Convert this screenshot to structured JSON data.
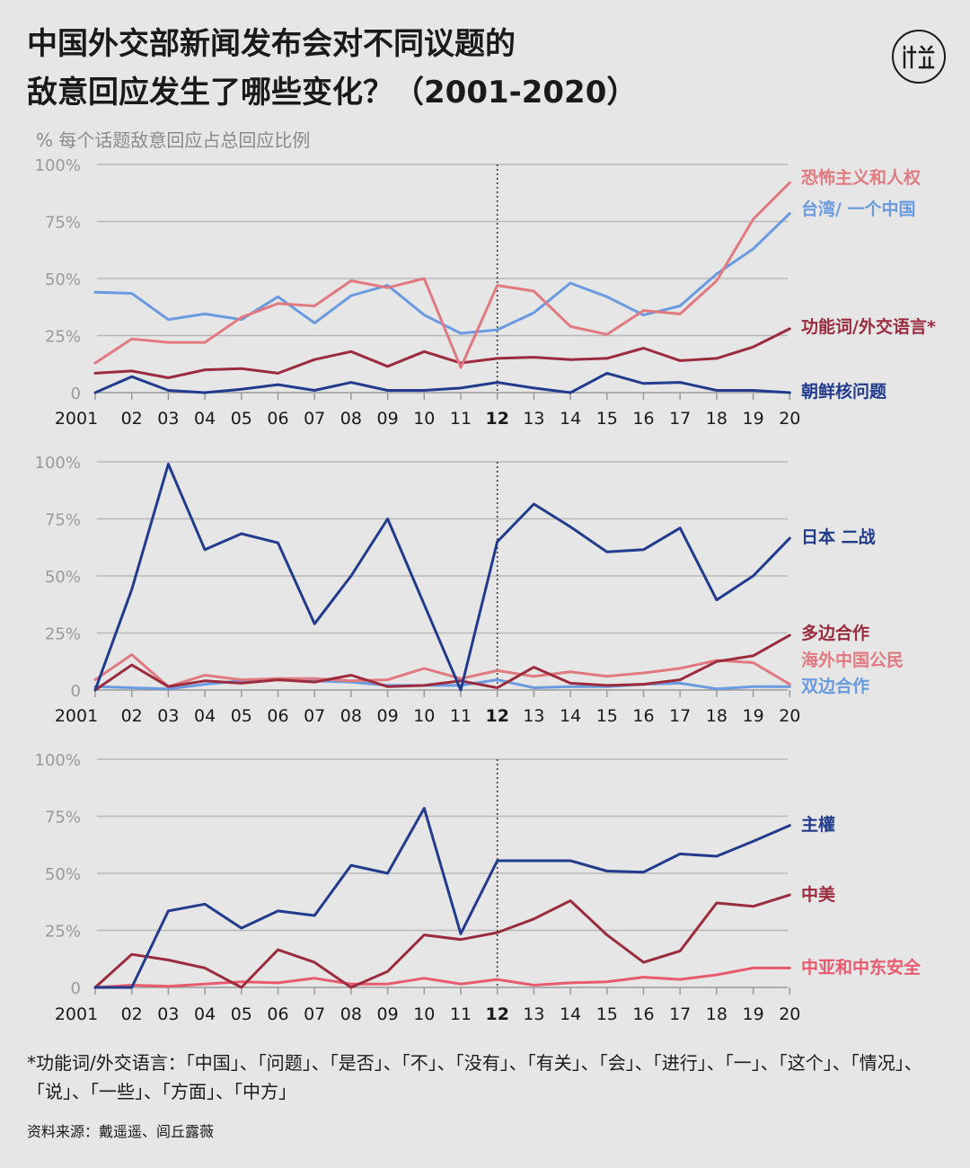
{
  "title_line1": "中国外交部新闻发布会对不同议题的",
  "title_line2": "敌意回应发生了哪些变化？（2001-2020）",
  "subtitle": "% 每个话题敌意回应占总回应比例",
  "footnote": "*功能词/外交语言：「中国」、「问题」、「是否」、「不」、「没有」、「有关」、「会」、「进行」、「一」、「这个」、「情况」、「说」、「一些」、「方面」、「中方」",
  "source": "资料来源：戴遥遥、闾丘露薇",
  "logo_icon": "initium-media-logo-icon",
  "chart_data": [
    {
      "type": "line",
      "categories": [
        "2001",
        "02",
        "03",
        "04",
        "05",
        "06",
        "07",
        "08",
        "09",
        "10",
        "11",
        "12",
        "13",
        "14",
        "15",
        "16",
        "17",
        "18",
        "19",
        "20"
      ],
      "y_ticks": [
        "100%",
        "75%",
        "50%",
        "25%",
        "0"
      ],
      "ylim": [
        0,
        100
      ],
      "highlight_category": "12",
      "vertical_marker_at": "12",
      "series": [
        {
          "name": "恐怖主义和人权",
          "color": "#e07a80",
          "values": [
            13,
            23.5,
            22,
            22,
            33,
            39,
            38,
            49,
            46,
            50,
            11,
            47,
            44.5,
            29,
            25.5,
            36,
            34.5,
            49,
            76,
            92
          ]
        },
        {
          "name": "台湾/ 一个中国",
          "color": "#6a9ae0",
          "values": [
            44,
            43.5,
            32,
            34.5,
            32,
            42,
            30.5,
            42.5,
            47,
            34,
            26,
            27.5,
            35,
            48,
            42,
            34,
            38,
            52,
            63,
            78.5
          ]
        },
        {
          "name": "功能词/外交语言*",
          "color": "#9b2c3e",
          "values": [
            8.5,
            9.5,
            6.5,
            10,
            10.5,
            8.5,
            14.5,
            18,
            11.5,
            18,
            13,
            15,
            15.5,
            14.5,
            15,
            19.5,
            14,
            15,
            20,
            28
          ]
        },
        {
          "name": "朝鲜核问题",
          "color": "#223b8c",
          "values": [
            0,
            7,
            1,
            0,
            1.5,
            3.5,
            1,
            4.5,
            1,
            1,
            2,
            4.5,
            2,
            0,
            8.5,
            4,
            4.5,
            1,
            1,
            0
          ]
        }
      ]
    },
    {
      "type": "line",
      "categories": [
        "2001",
        "02",
        "03",
        "04",
        "05",
        "06",
        "07",
        "08",
        "09",
        "10",
        "11",
        "12",
        "13",
        "14",
        "15",
        "16",
        "17",
        "18",
        "19",
        "20"
      ],
      "y_ticks": [
        "100%",
        "75%",
        "50%",
        "25%",
        "0"
      ],
      "ylim": [
        0,
        100
      ],
      "highlight_category": "12",
      "vertical_marker_at": "12",
      "series": [
        {
          "name": "日本 二战",
          "color": "#223b8c",
          "values": [
            0,
            44,
            99,
            61.5,
            68.5,
            64.5,
            29,
            50,
            75,
            37.5,
            0,
            65,
            81.5,
            71.5,
            60.5,
            61.5,
            71,
            39.5,
            50,
            66.5
          ]
        },
        {
          "name": "多边合作",
          "color": "#9b2c3e",
          "values": [
            0,
            11,
            1.5,
            4,
            3,
            4.5,
            3.5,
            6.5,
            1.5,
            2,
            4,
            1,
            10,
            3,
            2,
            2.5,
            4.5,
            12.5,
            15,
            24
          ]
        },
        {
          "name": "海外中国公民",
          "color": "#e07a80",
          "values": [
            4.5,
            15.5,
            1.5,
            6.5,
            4.5,
            5,
            5,
            4,
            4.5,
            9.5,
            5,
            8.5,
            6,
            8,
            6,
            7.5,
            9.5,
            13,
            12,
            2.5
          ]
        },
        {
          "name": "双边合作",
          "color": "#6a9ae0",
          "values": [
            1.5,
            1,
            0.5,
            2.5,
            4,
            4.5,
            4,
            3.5,
            2,
            2,
            2,
            4.5,
            1,
            1.5,
            1.5,
            2.5,
            3,
            0.5,
            1.5,
            1.5
          ]
        }
      ]
    },
    {
      "type": "line",
      "categories": [
        "2001",
        "02",
        "03",
        "04",
        "05",
        "06",
        "07",
        "08",
        "09",
        "10",
        "11",
        "12",
        "13",
        "14",
        "15",
        "16",
        "17",
        "18",
        "19",
        "20"
      ],
      "y_ticks": [
        "100%",
        "75%",
        "50%",
        "25%",
        "0"
      ],
      "ylim": [
        0,
        100
      ],
      "highlight_category": "12",
      "vertical_marker_at": "12",
      "series": [
        {
          "name": "主權",
          "color": "#223b8c",
          "values": [
            0,
            0,
            33.5,
            36.5,
            26,
            33.5,
            31.5,
            53.5,
            50,
            78.5,
            23.5,
            55.5,
            55.5,
            55.5,
            51,
            50.5,
            58.5,
            57.5,
            64,
            71
          ]
        },
        {
          "name": "中美",
          "color": "#9b2c3e",
          "values": [
            0,
            14.5,
            12,
            8.5,
            0,
            16.5,
            11,
            0,
            7,
            23,
            21,
            24,
            30,
            38,
            23,
            11,
            16,
            37,
            35.5,
            40.5
          ]
        },
        {
          "name": "中亚和中东安全",
          "color": "#e85a6e",
          "values": [
            0,
            1,
            0.5,
            1.5,
            2.5,
            2,
            4,
            1.5,
            1.5,
            4,
            1.5,
            3.5,
            1,
            2,
            2.5,
            4.5,
            3.5,
            5.5,
            8.5,
            8.5
          ]
        }
      ]
    }
  ]
}
